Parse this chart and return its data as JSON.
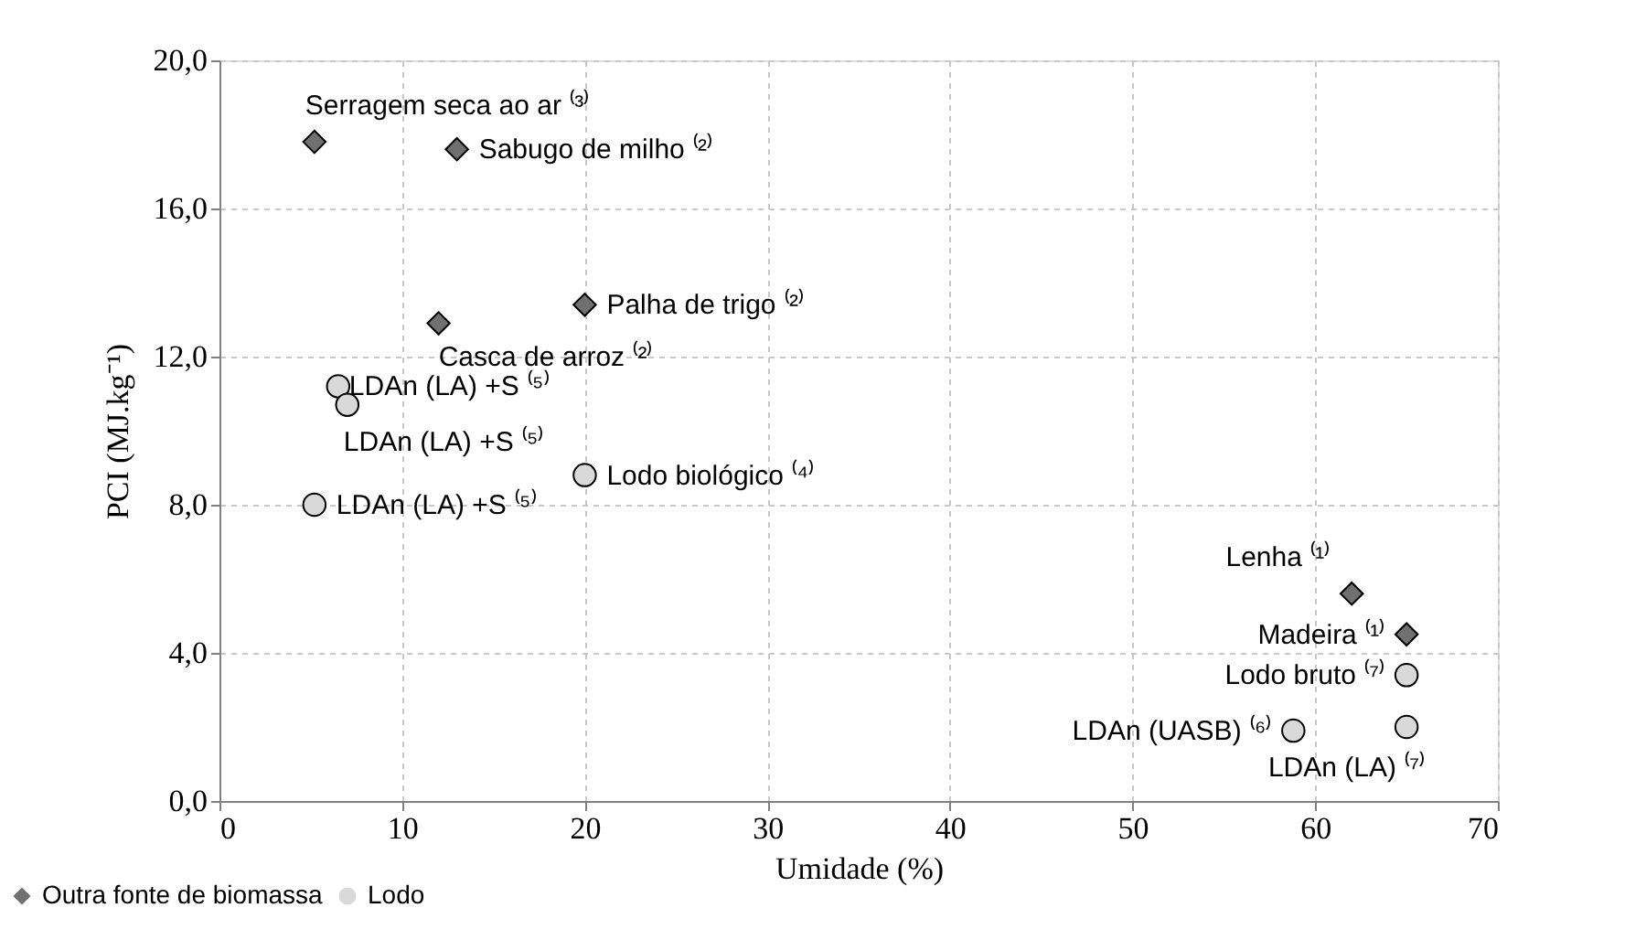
{
  "chart_data": {
    "type": "scatter",
    "xlabel": "Umidade (%)",
    "ylabel": "PCI (MJ.kg⁻¹)",
    "xlim": [
      0,
      70
    ],
    "xticks": [
      0,
      10,
      20,
      30,
      40,
      50,
      60,
      70
    ],
    "ylim": [
      0,
      20
    ],
    "yticks": [
      {
        "value": 0,
        "label": "0,0"
      },
      {
        "value": 4,
        "label": "4,0"
      },
      {
        "value": 8,
        "label": "8,0"
      },
      {
        "value": 12,
        "label": "12,0"
      },
      {
        "value": 16,
        "label": "16,0"
      },
      {
        "value": 20,
        "label": "20,0"
      }
    ],
    "grid": true,
    "legend": "bottom left",
    "series": [
      {
        "name": "Outra fonte de biomassa",
        "color": "#707070",
        "marker": "diamond",
        "x": [
          5.2,
          13.0,
          20.0,
          12.0,
          62.0,
          65.0
        ],
        "values": [
          17.8,
          17.6,
          13.4,
          12.9,
          5.6,
          4.5
        ]
      },
      {
        "name": "Lodo",
        "color": "#d9d9d9",
        "marker": "circle",
        "x": [
          6.5,
          7.0,
          5.2,
          20.0,
          65.0,
          58.8,
          65.0
        ],
        "values": [
          11.2,
          10.7,
          8.0,
          8.8,
          3.4,
          1.9,
          2.0
        ]
      }
    ],
    "annotations": [
      {
        "text": "Serragem seca ao ar ⁽³⁾",
        "x": 5.2,
        "y": 17.8
      },
      {
        "text": "Sabugo de milho ⁽²⁾",
        "x": 13.0,
        "y": 17.6
      },
      {
        "text": "Palha de trigo ⁽²⁾",
        "x": 20.0,
        "y": 13.4
      },
      {
        "text": "Casca de arroz ⁽²⁾",
        "x": 12.0,
        "y": 12.9
      },
      {
        "text": "Lenha ⁽¹⁾",
        "x": 62.0,
        "y": 5.6
      },
      {
        "text": "Madeira ⁽¹⁾",
        "x": 65.0,
        "y": 4.5
      },
      {
        "text": "LDAn (LA) +S ⁽⁵⁾",
        "x": 6.5,
        "y": 11.2
      },
      {
        "text": "LDAn (LA) +S ⁽⁵⁾",
        "x": 7.0,
        "y": 10.7
      },
      {
        "text": "LDAn (LA) +S ⁽⁵⁾",
        "x": 5.2,
        "y": 8.0
      },
      {
        "text": "Lodo biológico ⁽⁴⁾",
        "x": 20.0,
        "y": 8.8
      },
      {
        "text": "Lodo bruto ⁽⁷⁾",
        "x": 65.0,
        "y": 3.4
      },
      {
        "text": "LDAn (UASB) ⁽⁶⁾",
        "x": 58.8,
        "y": 1.9
      },
      {
        "text": "LDAn (LA) ⁽⁷⁾",
        "x": 65.0,
        "y": 2.0
      }
    ]
  }
}
